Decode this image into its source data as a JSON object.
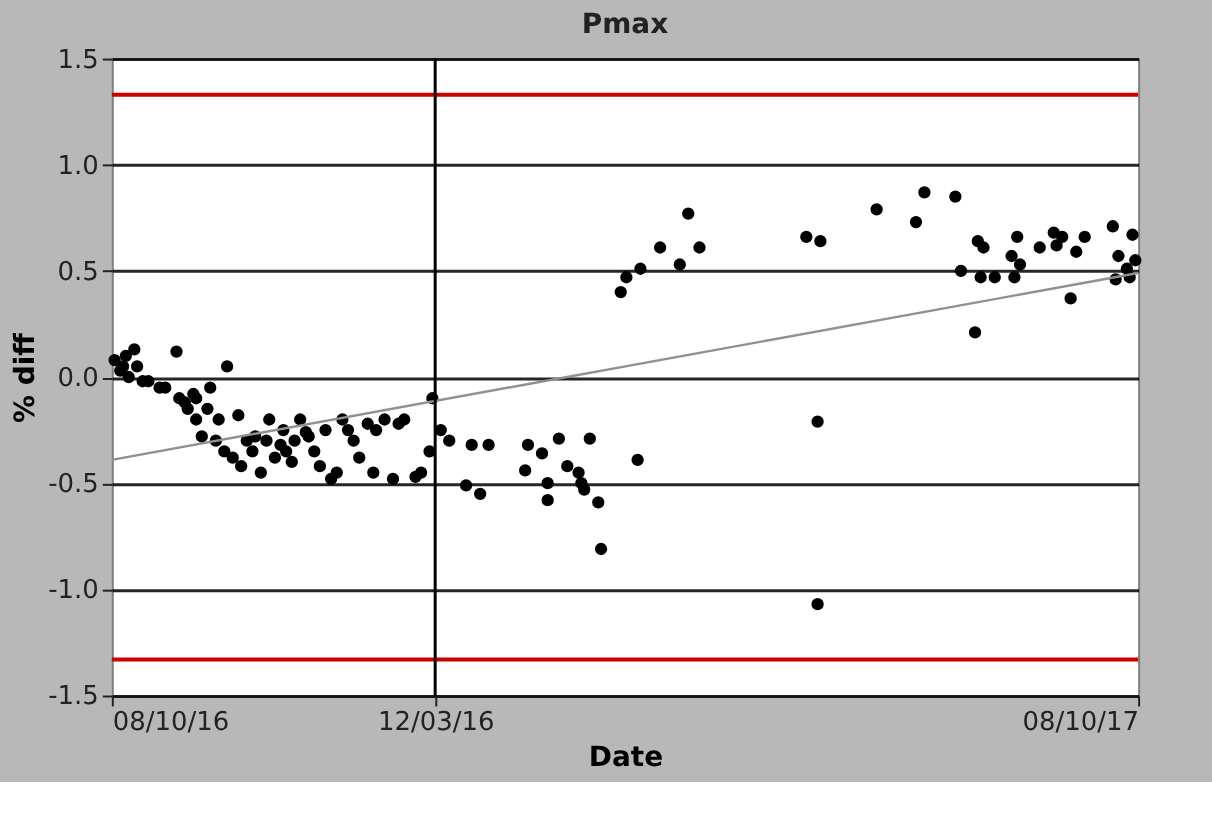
{
  "chart_data": {
    "type": "scatter",
    "title": "Pmax",
    "xlabel": "Date",
    "ylabel": "% diff",
    "xlim": [
      "2016-08-10",
      "2017-08-10"
    ],
    "xticks": [
      {
        "value": "2016-08-10",
        "label": "08/10/16"
      },
      {
        "value": "2016-12-03",
        "label": "12/03/16"
      },
      {
        "value": "2017-08-10",
        "label": "08/10/17"
      }
    ],
    "ylim": [
      -1.5,
      1.5
    ],
    "yticks": [
      {
        "value": -1.5,
        "label": "-1.5"
      },
      {
        "value": -1.0,
        "label": "-1.0"
      },
      {
        "value": -0.5,
        "label": "-0.5"
      },
      {
        "value": 0.0,
        "label": "0.0"
      },
      {
        "value": 0.5,
        "label": "0.5"
      },
      {
        "value": 1.0,
        "label": "1.0"
      },
      {
        "value": 1.5,
        "label": "1.5"
      }
    ],
    "grid": "y",
    "marker": "circle",
    "ref_lines": [
      {
        "axis": "y",
        "value": 1.33,
        "color": "#cc0000"
      },
      {
        "axis": "y",
        "value": -1.33,
        "color": "#cc0000"
      },
      {
        "axis": "x",
        "value": "2016-12-03",
        "color": "#000000"
      }
    ],
    "series": [
      {
        "color": "#000000",
        "x": [
          "2016-08-11",
          "2016-08-13",
          "2016-08-14",
          "2016-08-15",
          "2016-08-16",
          "2016-08-18",
          "2016-08-19",
          "2016-08-21",
          "2016-08-23",
          "2016-08-27",
          "2016-08-29",
          "2016-09-02",
          "2016-09-03",
          "2016-09-05",
          "2016-09-06",
          "2016-09-08",
          "2016-09-09",
          "2016-09-09",
          "2016-09-11",
          "2016-09-13",
          "2016-09-14",
          "2016-09-16",
          "2016-09-17",
          "2016-09-19",
          "2016-09-20",
          "2016-09-22",
          "2016-09-24",
          "2016-09-25",
          "2016-09-27",
          "2016-09-29",
          "2016-09-30",
          "2016-10-02",
          "2016-10-04",
          "2016-10-05",
          "2016-10-07",
          "2016-10-09",
          "2016-10-10",
          "2016-10-11",
          "2016-10-13",
          "2016-10-14",
          "2016-10-16",
          "2016-10-18",
          "2016-10-19",
          "2016-10-21",
          "2016-10-23",
          "2016-10-25",
          "2016-10-27",
          "2016-10-29",
          "2016-10-31",
          "2016-11-02",
          "2016-11-04",
          "2016-11-06",
          "2016-11-09",
          "2016-11-11",
          "2016-11-12",
          "2016-11-15",
          "2016-11-18",
          "2016-11-20",
          "2016-11-22",
          "2016-11-26",
          "2016-11-28",
          "2016-12-01",
          "2016-12-02",
          "2016-12-05",
          "2016-12-08",
          "2016-12-14",
          "2016-12-16",
          "2016-12-19",
          "2016-12-22",
          "2017-01-04",
          "2017-01-05",
          "2017-01-10",
          "2017-01-12",
          "2017-01-12",
          "2017-01-16",
          "2017-01-19",
          "2017-01-23",
          "2017-01-24",
          "2017-01-25",
          "2017-01-27",
          "2017-01-30",
          "2017-01-31",
          "2017-02-13",
          "2017-02-07",
          "2017-02-09",
          "2017-02-14",
          "2017-02-21",
          "2017-02-28",
          "2017-03-03",
          "2017-03-07",
          "2017-04-14",
          "2017-04-19",
          "2017-04-18",
          "2017-04-18",
          "2017-05-09",
          "2017-05-23",
          "2017-05-26",
          "2017-06-06",
          "2017-06-08",
          "2017-06-13",
          "2017-06-14",
          "2017-06-15",
          "2017-06-16",
          "2017-06-20",
          "2017-06-26",
          "2017-06-27",
          "2017-06-28",
          "2017-06-29",
          "2017-07-06",
          "2017-07-11",
          "2017-07-12",
          "2017-07-14",
          "2017-07-17",
          "2017-07-19",
          "2017-07-22",
          "2017-08-01",
          "2017-08-02",
          "2017-08-03",
          "2017-08-06",
          "2017-08-07",
          "2017-08-08",
          "2017-08-09"
        ],
        "values": [
          0.08,
          0.03,
          0.05,
          0.1,
          0.0,
          0.13,
          0.05,
          -0.02,
          -0.02,
          -0.05,
          -0.05,
          0.12,
          -0.1,
          -0.12,
          -0.15,
          -0.08,
          -0.2,
          -0.1,
          -0.28,
          -0.15,
          -0.05,
          -0.3,
          -0.2,
          -0.35,
          0.05,
          -0.38,
          -0.18,
          -0.42,
          -0.3,
          -0.35,
          -0.28,
          -0.45,
          -0.3,
          -0.2,
          -0.38,
          -0.32,
          -0.25,
          -0.35,
          -0.4,
          -0.3,
          -0.2,
          -0.26,
          -0.28,
          -0.35,
          -0.42,
          -0.25,
          -0.48,
          -0.45,
          -0.2,
          -0.25,
          -0.3,
          -0.38,
          -0.22,
          -0.45,
          -0.25,
          -0.2,
          -0.48,
          -0.22,
          -0.2,
          -0.47,
          -0.45,
          -0.35,
          -0.1,
          -0.25,
          -0.3,
          -0.51,
          -0.32,
          -0.55,
          -0.32,
          -0.44,
          -0.32,
          -0.36,
          -0.5,
          -0.58,
          -0.29,
          -0.42,
          -0.45,
          -0.5,
          -0.53,
          -0.29,
          -0.59,
          -0.81,
          -0.39,
          0.4,
          0.47,
          0.51,
          0.61,
          0.53,
          0.77,
          0.61,
          0.66,
          0.64,
          -0.21,
          -1.07,
          0.79,
          0.73,
          0.87,
          0.85,
          0.5,
          0.21,
          0.64,
          0.47,
          0.61,
          0.47,
          0.57,
          0.47,
          0.66,
          0.53,
          0.61,
          0.68,
          0.62,
          0.66,
          0.37,
          0.59,
          0.66,
          0.71,
          0.46,
          0.57,
          0.51,
          0.47,
          0.67,
          0.55
        ]
      },
      {
        "type": "line",
        "color": "#909090",
        "marker": "none",
        "x": [
          "2016-08-10",
          "2017-08-10"
        ],
        "values": [
          -0.39,
          0.49
        ]
      }
    ]
  }
}
